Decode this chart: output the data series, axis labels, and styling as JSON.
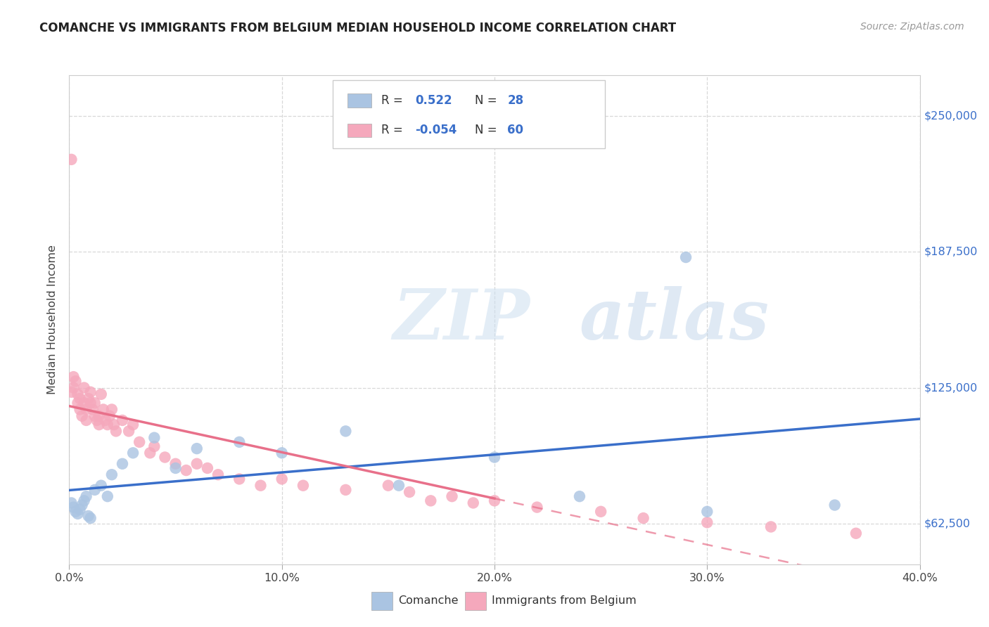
{
  "title": "COMANCHE VS IMMIGRANTS FROM BELGIUM MEDIAN HOUSEHOLD INCOME CORRELATION CHART",
  "source": "Source: ZipAtlas.com",
  "ylabel": "Median Household Income",
  "xlim": [
    0.0,
    0.4
  ],
  "ylim": [
    43750,
    268750
  ],
  "yticks": [
    62500,
    125000,
    187500,
    250000
  ],
  "ytick_labels": [
    "$62,500",
    "$125,000",
    "$187,500",
    "$250,000"
  ],
  "xticks": [
    0.0,
    0.1,
    0.2,
    0.3,
    0.4
  ],
  "xtick_labels": [
    "0.0%",
    "10.0%",
    "20.0%",
    "30.0%",
    "40.0%"
  ],
  "legend_labels": [
    "Comanche",
    "Immigrants from Belgium"
  ],
  "r_comanche": "0.522",
  "n_comanche": "28",
  "r_belgium": "-0.054",
  "n_belgium": "60",
  "comanche_color": "#aac4e2",
  "belgium_color": "#f5a8bc",
  "comanche_line_color": "#3a6fca",
  "belgium_line_color": "#e8708a",
  "text_blue": "#3a6fca",
  "text_dark": "#333333",
  "grid_color": "#d8d8d8",
  "comanche_x": [
    0.001,
    0.002,
    0.003,
    0.004,
    0.005,
    0.006,
    0.007,
    0.008,
    0.009,
    0.01,
    0.012,
    0.015,
    0.018,
    0.02,
    0.025,
    0.03,
    0.04,
    0.05,
    0.06,
    0.08,
    0.1,
    0.13,
    0.155,
    0.2,
    0.24,
    0.3,
    0.36,
    0.29
  ],
  "comanche_y": [
    72000,
    70000,
    68000,
    67000,
    69000,
    71000,
    73000,
    75000,
    66000,
    65000,
    78000,
    80000,
    75000,
    85000,
    90000,
    95000,
    102000,
    88000,
    97000,
    100000,
    95000,
    105000,
    80000,
    93000,
    75000,
    68000,
    71000,
    185000
  ],
  "belgium_x": [
    0.001,
    0.002,
    0.002,
    0.003,
    0.004,
    0.004,
    0.005,
    0.005,
    0.006,
    0.007,
    0.007,
    0.008,
    0.008,
    0.009,
    0.01,
    0.01,
    0.011,
    0.012,
    0.012,
    0.013,
    0.014,
    0.014,
    0.015,
    0.016,
    0.017,
    0.018,
    0.019,
    0.02,
    0.021,
    0.022,
    0.025,
    0.028,
    0.03,
    0.033,
    0.038,
    0.04,
    0.045,
    0.05,
    0.055,
    0.06,
    0.065,
    0.07,
    0.08,
    0.09,
    0.1,
    0.11,
    0.13,
    0.15,
    0.16,
    0.17,
    0.18,
    0.19,
    0.2,
    0.22,
    0.25,
    0.27,
    0.3,
    0.33,
    0.37,
    0.001
  ],
  "belgium_y": [
    123000,
    130000,
    125000,
    128000,
    122000,
    118000,
    115000,
    120000,
    112000,
    118000,
    125000,
    110000,
    115000,
    120000,
    123000,
    118000,
    115000,
    112000,
    118000,
    110000,
    108000,
    112000,
    122000,
    115000,
    110000,
    108000,
    112000,
    115000,
    108000,
    105000,
    110000,
    105000,
    108000,
    100000,
    95000,
    98000,
    93000,
    90000,
    87000,
    90000,
    88000,
    85000,
    83000,
    80000,
    83000,
    80000,
    78000,
    80000,
    77000,
    73000,
    75000,
    72000,
    73000,
    70000,
    68000,
    65000,
    63000,
    61000,
    58000,
    230000
  ]
}
